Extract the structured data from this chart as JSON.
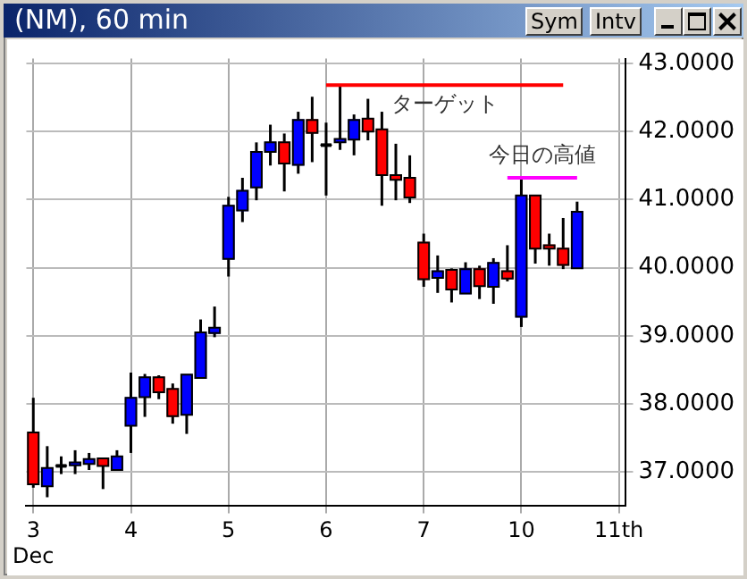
{
  "chart_data": {
    "type": "candlestick",
    "title": "(NM), 60 min",
    "categories": [
      "3\nDec",
      null,
      null,
      null,
      null,
      null,
      null,
      "4",
      null,
      null,
      null,
      null,
      null,
      null,
      "5",
      null,
      null,
      null,
      null,
      null,
      null,
      "6",
      null,
      null,
      null,
      null,
      null,
      null,
      "7",
      null,
      null,
      null,
      null,
      null,
      null,
      "10",
      null,
      null,
      null,
      null,
      null,
      null,
      "11th"
    ],
    "ohlc": [
      [
        37.58,
        38.09,
        36.77,
        36.82
      ],
      [
        36.79,
        37.38,
        36.63,
        37.06
      ],
      [
        37.09,
        37.23,
        36.97,
        37.09
      ],
      [
        37.1,
        37.32,
        36.97,
        37.14
      ],
      [
        37.12,
        37.28,
        37.03,
        37.19
      ],
      [
        37.2,
        37.2,
        36.75,
        37.09
      ],
      [
        37.03,
        37.32,
        37.03,
        37.23
      ],
      [
        37.68,
        38.46,
        37.28,
        38.09
      ],
      [
        38.1,
        38.44,
        37.81,
        38.39
      ],
      [
        38.39,
        38.42,
        38.07,
        38.17
      ],
      [
        38.22,
        38.3,
        37.71,
        37.82
      ],
      [
        37.84,
        38.43,
        37.56,
        38.43
      ],
      [
        38.38,
        39.24,
        38.38,
        39.05
      ],
      [
        39.04,
        39.43,
        38.98,
        39.12
      ],
      [
        40.13,
        41.04,
        39.87,
        40.91
      ],
      [
        40.84,
        41.32,
        40.67,
        41.13
      ],
      [
        41.18,
        41.84,
        40.99,
        41.7
      ],
      [
        41.7,
        42.1,
        41.5,
        41.84
      ],
      [
        41.84,
        41.97,
        41.12,
        41.53
      ],
      [
        41.51,
        42.29,
        41.38,
        42.17
      ],
      [
        42.17,
        42.51,
        41.55,
        41.98
      ],
      [
        41.8,
        42.13,
        41.06,
        41.8
      ],
      [
        41.84,
        42.66,
        41.73,
        41.89
      ],
      [
        41.88,
        42.25,
        41.65,
        42.17
      ],
      [
        42.19,
        42.48,
        41.87,
        42.0
      ],
      [
        42.03,
        42.29,
        40.91,
        41.36
      ],
      [
        41.36,
        41.82,
        40.99,
        41.29
      ],
      [
        41.32,
        41.65,
        40.95,
        41.03
      ],
      [
        40.37,
        40.5,
        39.72,
        39.83
      ],
      [
        39.85,
        40.18,
        39.63,
        39.95
      ],
      [
        39.97,
        39.99,
        39.49,
        39.68
      ],
      [
        39.62,
        40.08,
        39.62,
        39.98
      ],
      [
        39.98,
        40.03,
        39.54,
        39.73
      ],
      [
        39.72,
        40.14,
        39.47,
        40.07
      ],
      [
        39.95,
        40.33,
        39.8,
        39.84
      ],
      [
        39.28,
        41.34,
        39.13,
        41.06
      ],
      [
        41.06,
        41.06,
        40.06,
        40.28
      ],
      [
        40.33,
        40.5,
        40.03,
        40.28
      ],
      [
        40.28,
        40.73,
        39.98,
        40.04
      ],
      [
        39.99,
        40.97,
        39.99,
        40.82
      ],
      null,
      null,
      null
    ],
    "colors": [
      "#ff0000",
      "#0000ff",
      "#000000",
      "#0000ff",
      "#0000ff",
      "#ff0000",
      "#0000ff",
      "#0000ff",
      "#0000ff",
      "#ff0000",
      "#ff0000",
      "#0000ff",
      "#0000ff",
      "#0000ff",
      "#0000ff",
      "#0000ff",
      "#0000ff",
      "#0000ff",
      "#ff0000",
      "#0000ff",
      "#ff0000",
      "#000000",
      "#0000ff",
      "#0000ff",
      "#ff0000",
      "#ff0000",
      "#ff0000",
      "#ff0000",
      "#ff0000",
      "#0000ff",
      "#ff0000",
      "#0000ff",
      "#ff0000",
      "#0000ff",
      "#ff0000",
      "#0000ff",
      "#ff0000",
      "#ff0000",
      "#ff0000",
      "#0000ff",
      null,
      null,
      null
    ],
    "series": [
      {
        "type": "line",
        "name": "ターゲット",
        "color": "#ff0000",
        "values": [
          null,
          null,
          null,
          null,
          null,
          null,
          null,
          null,
          null,
          null,
          null,
          null,
          null,
          null,
          null,
          null,
          null,
          null,
          null,
          null,
          null,
          42.68,
          42.68,
          42.68,
          42.68,
          42.68,
          42.68,
          42.68,
          42.68,
          42.68,
          42.68,
          42.68,
          42.68,
          42.68,
          42.68,
          42.68,
          42.68,
          42.68,
          42.68,
          null,
          null,
          null,
          null
        ]
      },
      {
        "type": "line",
        "name": "今日の高値",
        "color": "#ff00ff",
        "values": [
          null,
          null,
          null,
          null,
          null,
          null,
          null,
          null,
          null,
          null,
          null,
          null,
          null,
          null,
          null,
          null,
          null,
          null,
          null,
          null,
          null,
          null,
          null,
          null,
          null,
          null,
          null,
          null,
          null,
          null,
          null,
          null,
          null,
          null,
          41.32,
          41.32,
          41.32,
          41.32,
          41.32,
          41.32,
          null,
          null,
          null
        ]
      }
    ],
    "annotations": [
      "Sym",
      "Intv"
    ],
    "ylim": [
      36.5,
      43.07
    ],
    "yticks": [
      {
        "value": 37,
        "label": "37.0000"
      },
      {
        "value": 38,
        "label": "38.0000"
      },
      {
        "value": 39,
        "label": "39.0000"
      },
      {
        "value": 40,
        "label": "40.0000"
      },
      {
        "value": 41,
        "label": "41.0000"
      },
      {
        "value": 42,
        "label": "42.0000"
      },
      {
        "value": 43,
        "label": "43.0000"
      }
    ],
    "grid": true,
    "legend": false,
    "marker": "none"
  }
}
